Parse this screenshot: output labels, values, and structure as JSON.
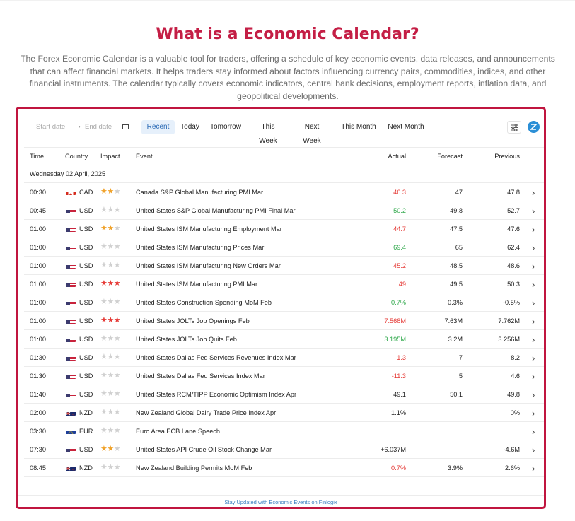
{
  "page": {
    "title": "What is a Economic Calendar?",
    "intro": "The Forex Economic Calendar is a valuable tool for traders, offering a schedule of key economic events, data releases, and announcements that can affect financial markets. It helps traders stay informed about factors influencing currency pairs, commodities, indices, and other financial instruments. The calendar typically covers economic indicators, central bank decisions, employment reports, inflation data, and geopolitical developments."
  },
  "toolbar": {
    "start_placeholder": "Start date",
    "end_placeholder": "End date",
    "tabs": [
      "Recent",
      "Today",
      "Tomorrow",
      "This Week",
      "Next Week",
      "This Month",
      "Next Month"
    ],
    "active_tab": "Recent"
  },
  "table": {
    "headers": {
      "time": "Time",
      "country": "Country",
      "impact": "Impact",
      "event": "Event",
      "actual": "Actual",
      "forecast": "Forecast",
      "previous": "Previous"
    },
    "date_label": "Wednesday 02 April, 2025",
    "rows": [
      {
        "time": "00:30",
        "flag": "ca",
        "currency": "CAD",
        "impact": 2,
        "event": "Canada S&P Global Manufacturing PMI Mar",
        "actual": "46.3",
        "actual_color": "red",
        "forecast": "47",
        "previous": "47.8"
      },
      {
        "time": "00:45",
        "flag": "us",
        "currency": "USD",
        "impact": 1,
        "event": "United States S&P Global Manufacturing PMI Final Mar",
        "actual": "50.2",
        "actual_color": "green",
        "forecast": "49.8",
        "previous": "52.7"
      },
      {
        "time": "01:00",
        "flag": "us",
        "currency": "USD",
        "impact": 2,
        "event": "United States ISM Manufacturing Employment Mar",
        "actual": "44.7",
        "actual_color": "red",
        "forecast": "47.5",
        "previous": "47.6"
      },
      {
        "time": "01:00",
        "flag": "us",
        "currency": "USD",
        "impact": 1,
        "event": "United States ISM Manufacturing Prices Mar",
        "actual": "69.4",
        "actual_color": "green",
        "forecast": "65",
        "previous": "62.4"
      },
      {
        "time": "01:00",
        "flag": "us",
        "currency": "USD",
        "impact": 1,
        "event": "United States ISM Manufacturing New Orders Mar",
        "actual": "45.2",
        "actual_color": "red",
        "forecast": "48.5",
        "previous": "48.6"
      },
      {
        "time": "01:00",
        "flag": "us",
        "currency": "USD",
        "impact": 3,
        "event": "United States ISM Manufacturing PMI Mar",
        "actual": "49",
        "actual_color": "red",
        "forecast": "49.5",
        "previous": "50.3"
      },
      {
        "time": "01:00",
        "flag": "us",
        "currency": "USD",
        "impact": 1,
        "event": "United States Construction Spending MoM Feb",
        "actual": "0.7%",
        "actual_color": "green",
        "forecast": "0.3%",
        "previous": "-0.5%"
      },
      {
        "time": "01:00",
        "flag": "us",
        "currency": "USD",
        "impact": 3,
        "event": "United States JOLTs Job Openings Feb",
        "actual": "7.568M",
        "actual_color": "red",
        "forecast": "7.63M",
        "previous": "7.762M"
      },
      {
        "time": "01:00",
        "flag": "us",
        "currency": "USD",
        "impact": 1,
        "event": "United States JOLTs Job Quits Feb",
        "actual": "3.195M",
        "actual_color": "green",
        "forecast": "3.2M",
        "previous": "3.256M"
      },
      {
        "time": "01:30",
        "flag": "us",
        "currency": "USD",
        "impact": 1,
        "event": "United States Dallas Fed Services Revenues Index Mar",
        "actual": "1.3",
        "actual_color": "red",
        "forecast": "7",
        "previous": "8.2"
      },
      {
        "time": "01:30",
        "flag": "us",
        "currency": "USD",
        "impact": 1,
        "event": "United States Dallas Fed Services Index Mar",
        "actual": "-11.3",
        "actual_color": "red",
        "forecast": "5",
        "previous": "4.6"
      },
      {
        "time": "01:40",
        "flag": "us",
        "currency": "USD",
        "impact": 1,
        "event": "United States RCM/TIPP Economic Optimism Index Apr",
        "actual": "49.1",
        "actual_color": "plain",
        "forecast": "50.1",
        "previous": "49.8"
      },
      {
        "time": "02:00",
        "flag": "nz",
        "currency": "NZD",
        "impact": 1,
        "event": "New Zealand Global Dairy Trade Price Index Apr",
        "actual": "1.1%",
        "actual_color": "plain",
        "forecast": "",
        "previous": "0%"
      },
      {
        "time": "03:30",
        "flag": "eu",
        "currency": "EUR",
        "impact": 1,
        "event": "Euro Area ECB Lane Speech",
        "actual": "",
        "actual_color": "plain",
        "forecast": "",
        "previous": ""
      },
      {
        "time": "07:30",
        "flag": "us",
        "currency": "USD",
        "impact": 2,
        "event": "United States API Crude Oil Stock Change Mar",
        "actual": "+6.037M",
        "actual_color": "plain",
        "forecast": "",
        "previous": "-4.6M"
      },
      {
        "time": "08:45",
        "flag": "nz",
        "currency": "NZD",
        "impact": 1,
        "event": "New Zealand Building Permits MoM Feb",
        "actual": "0.7%",
        "actual_color": "red",
        "forecast": "3.9%",
        "previous": "2.6%"
      }
    ]
  },
  "footer": {
    "link": "Stay Updated with Economic Events on Finlogix"
  },
  "colors": {
    "brand": "#c41e45",
    "border": "#c0153f",
    "active_tab_bg": "#e6f0fb",
    "active_tab_text": "#2c6bb6",
    "negative": "#e53935",
    "positive": "#2ea84a",
    "star": "#f0a22a"
  }
}
